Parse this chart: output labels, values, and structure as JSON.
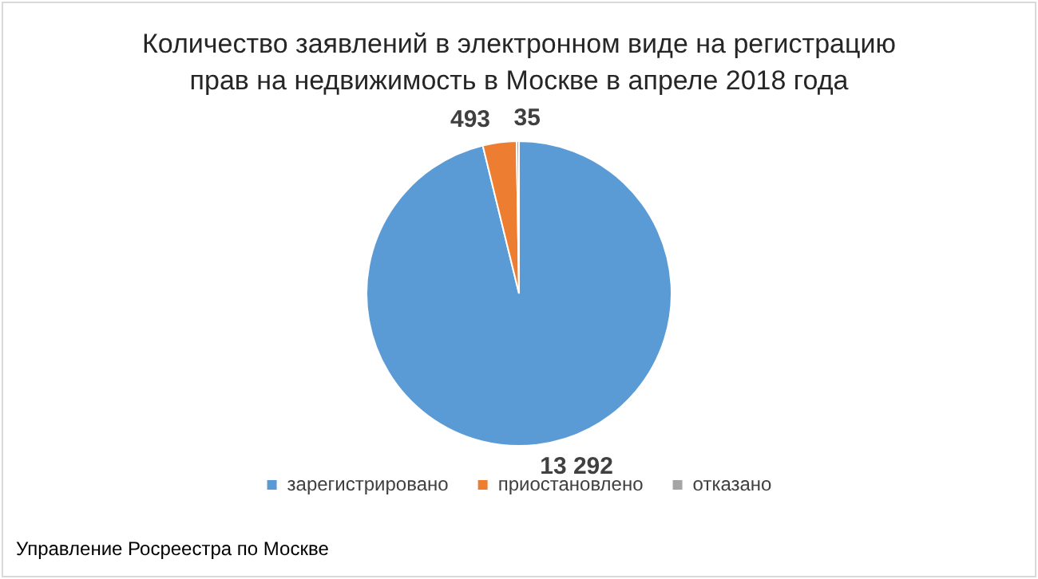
{
  "chart_data": {
    "type": "pie",
    "title": "Количество заявлений в электронном виде на регистрацию прав на недвижимость в Москве в апреле 2018 года",
    "categories": [
      "зарегистрировано",
      "приостановлено",
      "отказано"
    ],
    "values": [
      13292,
      493,
      35
    ],
    "colors": [
      "#5b9bd5",
      "#ed7d31",
      "#a5a5a5"
    ],
    "value_labels": [
      "13 292",
      "493",
      "35"
    ],
    "legend": "bottom",
    "annotations": [
      "Управление Росреестра по Москве"
    ]
  }
}
